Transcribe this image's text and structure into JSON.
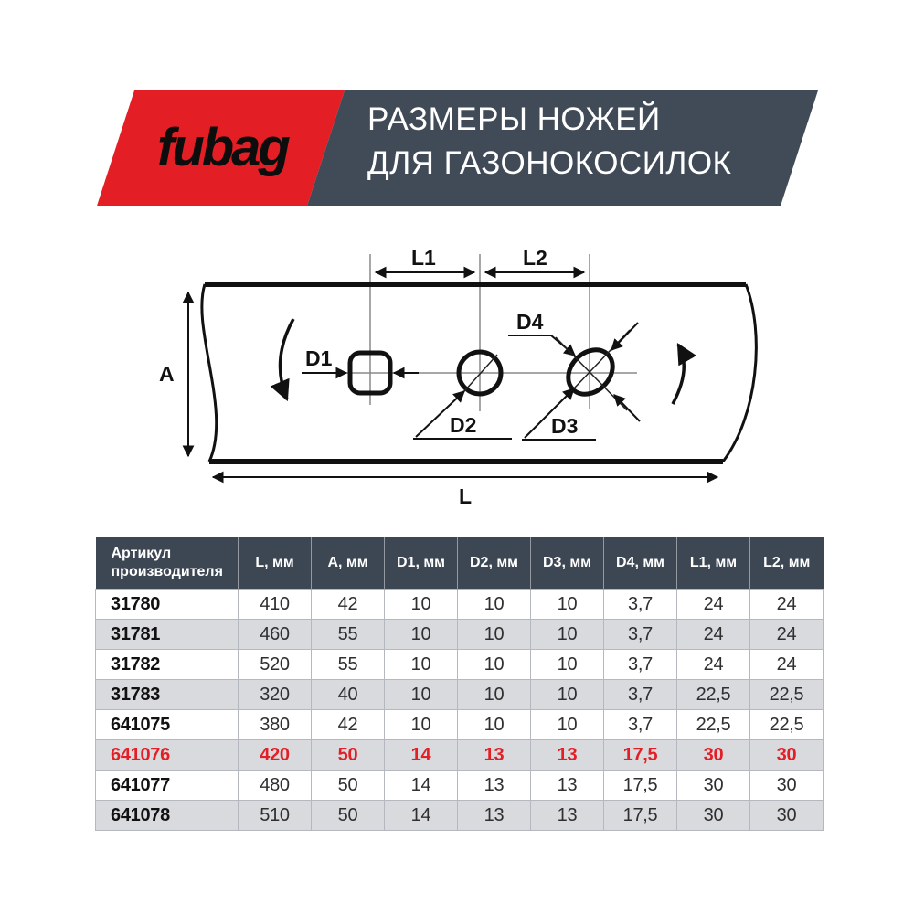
{
  "banner": {
    "logo_text": "fubag",
    "title_line1": "РАЗМЕРЫ НОЖЕЙ",
    "title_line2": "ДЛЯ ГАЗОНОКОСИЛОК"
  },
  "diagram": {
    "labels": {
      "a": "A",
      "l": "L",
      "l1": "L1",
      "l2": "L2",
      "d1": "D1",
      "d2": "D2",
      "d3": "D3",
      "d4": "D4"
    }
  },
  "table": {
    "header": {
      "article_line1": "Артикул",
      "article_line2": "производителя",
      "cols": [
        "L, мм",
        "A, мм",
        "D1, мм",
        "D2, мм",
        "D3, мм",
        "D4, мм",
        "L1, мм",
        "L2, мм"
      ]
    },
    "rows": [
      {
        "article": "31780",
        "values": [
          "410",
          "42",
          "10",
          "10",
          "10",
          "3,7",
          "24",
          "24"
        ],
        "highlight": false
      },
      {
        "article": "31781",
        "values": [
          "460",
          "55",
          "10",
          "10",
          "10",
          "3,7",
          "24",
          "24"
        ],
        "highlight": false
      },
      {
        "article": "31782",
        "values": [
          "520",
          "55",
          "10",
          "10",
          "10",
          "3,7",
          "24",
          "24"
        ],
        "highlight": false
      },
      {
        "article": "31783",
        "values": [
          "320",
          "40",
          "10",
          "10",
          "10",
          "3,7",
          "22,5",
          "22,5"
        ],
        "highlight": false
      },
      {
        "article": "641075",
        "values": [
          "380",
          "42",
          "10",
          "10",
          "10",
          "3,7",
          "22,5",
          "22,5"
        ],
        "highlight": false
      },
      {
        "article": "641076",
        "values": [
          "420",
          "50",
          "14",
          "13",
          "13",
          "17,5",
          "30",
          "30"
        ],
        "highlight": true
      },
      {
        "article": "641077",
        "values": [
          "480",
          "50",
          "14",
          "13",
          "13",
          "17,5",
          "30",
          "30"
        ],
        "highlight": false
      },
      {
        "article": "641078",
        "values": [
          "510",
          "50",
          "14",
          "13",
          "13",
          "17,5",
          "30",
          "30"
        ],
        "highlight": false
      }
    ]
  },
  "colors": {
    "brand_red": "#e31e24",
    "banner_gray": "#414b57",
    "table_header_bg": "#3d4653",
    "row_alt": "#d8dade",
    "diagram_stroke": "#111111"
  }
}
